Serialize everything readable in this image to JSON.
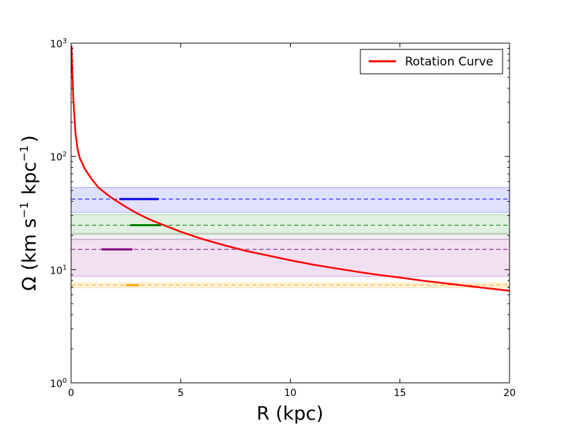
{
  "chart_data": {
    "type": "line",
    "xlabel": "R (kpc)",
    "ylabel_main": "Ω (km s",
    "ylabel_exp1": "−1",
    "ylabel_mid": "kpc",
    "ylabel_exp2": "−1",
    "ylabel_close": ")",
    "x_ticks": [
      {
        "value": 0,
        "label": "0"
      },
      {
        "value": 5,
        "label": "5"
      },
      {
        "value": 10,
        "label": "10"
      },
      {
        "value": 15,
        "label": "15"
      },
      {
        "value": 20,
        "label": "20"
      }
    ],
    "y_ticks": [
      {
        "value": 1,
        "base": "10",
        "exp": "0"
      },
      {
        "value": 10,
        "base": "10",
        "exp": "1"
      },
      {
        "value": 100,
        "base": "10",
        "exp": "2"
      },
      {
        "value": 1000,
        "base": "10",
        "exp": "3"
      }
    ],
    "xlim": [
      0,
      20
    ],
    "ylim": [
      1,
      1000
    ],
    "yscale": "log",
    "legend": {
      "label": "Rotation Curve",
      "color": "#ff0000",
      "location": "upper right"
    },
    "series": [
      {
        "name": "Rotation Curve",
        "color": "#ff0000",
        "x": [
          0.02,
          0.05,
          0.1,
          0.15,
          0.2,
          0.3,
          0.4,
          0.5,
          0.6,
          0.8,
          1.0,
          1.25,
          1.5,
          1.75,
          2.0,
          2.5,
          3.0,
          3.5,
          4.0,
          5.0,
          6.0,
          7.0,
          8.0,
          9.0,
          10.0,
          11.0,
          12.0,
          13.0,
          14.0,
          15.0,
          16.0,
          17.0,
          18.0,
          19.0,
          20.0
        ],
        "y": [
          950,
          600,
          330,
          230,
          160,
          115,
          96,
          88,
          79,
          69,
          61,
          53,
          48.5,
          44.5,
          41.2,
          35.8,
          31.5,
          28.2,
          25.7,
          21.6,
          18.6,
          16.4,
          14.6,
          13.3,
          12.1,
          11.1,
          10.3,
          9.6,
          9.0,
          8.5,
          8.0,
          7.6,
          7.2,
          6.85,
          6.5
        ]
      }
    ],
    "bands": [
      {
        "name": "blue band",
        "lo": 32,
        "hi": 53,
        "fill": "#0000ff",
        "line": 42,
        "line_color": "#0000ff",
        "seg_x": [
          2.2,
          4.0
        ]
      },
      {
        "name": "green band",
        "lo": 20.5,
        "hi": 30.5,
        "fill": "#008000",
        "line": 24.7,
        "line_color": "#008000",
        "seg_x": [
          2.7,
          4.1
        ]
      },
      {
        "name": "gray band",
        "lo": 18.5,
        "hi": 21,
        "fill": "#808080",
        "line": null,
        "line_color": null,
        "seg_x": null
      },
      {
        "name": "purple band",
        "lo": 8.7,
        "hi": 18.5,
        "fill": "#800080",
        "line": 15.1,
        "line_color": "#800080",
        "seg_x": [
          1.4,
          2.8
        ]
      },
      {
        "name": "orange band",
        "lo": 6.9,
        "hi": 7.6,
        "fill": "#ffa500",
        "line": 7.3,
        "line_color": "#ffa500",
        "seg_x": [
          2.5,
          3.1
        ]
      }
    ]
  }
}
